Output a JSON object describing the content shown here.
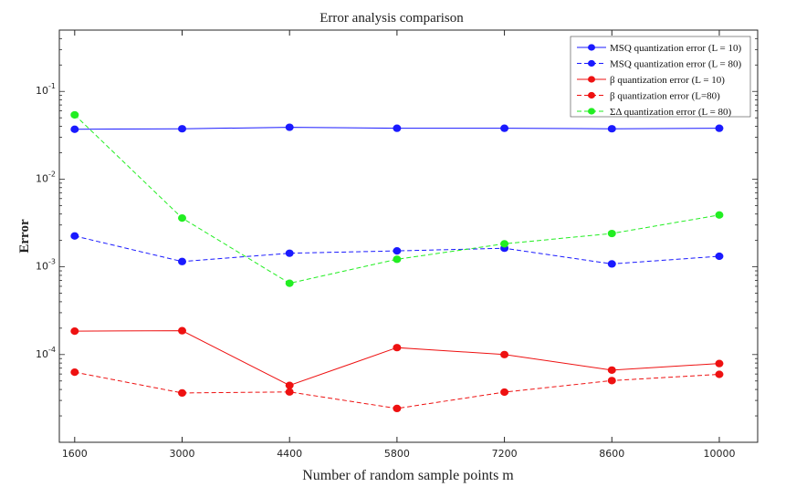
{
  "chart_data": {
    "type": "line",
    "title": "Error analysis comparison",
    "xlabel": "Number of random sample points m",
    "ylabel": "Error",
    "x": [
      1600,
      3000,
      4400,
      5800,
      7200,
      8600,
      10000
    ],
    "x_tick_labels": [
      "1600",
      "3000",
      "4400",
      "5800",
      "7200",
      "8600",
      "10000"
    ],
    "xlim": [
      1400,
      10500
    ],
    "ylim": [
      1e-05,
      0.5
    ],
    "yscale": "log",
    "y_ticks": [
      {
        "value": 0.1,
        "base": "10",
        "exp": "-1"
      },
      {
        "value": 0.01,
        "base": "10",
        "exp": "-2"
      },
      {
        "value": 0.001,
        "base": "10",
        "exp": "-3"
      },
      {
        "value": 0.0001,
        "base": "10",
        "exp": "-4"
      }
    ],
    "grid": false,
    "legend_position": "top-right",
    "series": [
      {
        "name": "MSQ quantization error (L = 10)",
        "color": "#1a1aff",
        "linestyle": "solid",
        "marker": "circle",
        "values": [
          0.037,
          0.0375,
          0.039,
          0.038,
          0.038,
          0.0375,
          0.038
        ]
      },
      {
        "name": "MSQ quantization error (L = 80)",
        "color": "#1a1aff",
        "linestyle": "dashed",
        "marker": "circle",
        "values": [
          0.00225,
          0.00115,
          0.00143,
          0.00152,
          0.00163,
          0.00108,
          0.00132
        ]
      },
      {
        "name": "β quantization error (L = 10)",
        "color": "#ee1111",
        "linestyle": "solid",
        "marker": "circle",
        "values": [
          0.000185,
          0.000187,
          4.45e-05,
          0.00012,
          0.0001,
          6.65e-05,
          7.9e-05
        ]
      },
      {
        "name": "β quantization error (L=80)",
        "color": "#ee1111",
        "linestyle": "dashed",
        "marker": "circle",
        "values": [
          6.3e-05,
          3.65e-05,
          3.75e-05,
          2.43e-05,
          3.73e-05,
          5.05e-05,
          5.95e-05
        ]
      },
      {
        "name": "ΣΔ quantization error (L = 80)",
        "color": "#22ee22",
        "linestyle": "dashed",
        "marker": "circle",
        "values": [
          0.054,
          0.0036,
          0.00065,
          0.00122,
          0.00183,
          0.0024,
          0.0039
        ]
      }
    ]
  }
}
